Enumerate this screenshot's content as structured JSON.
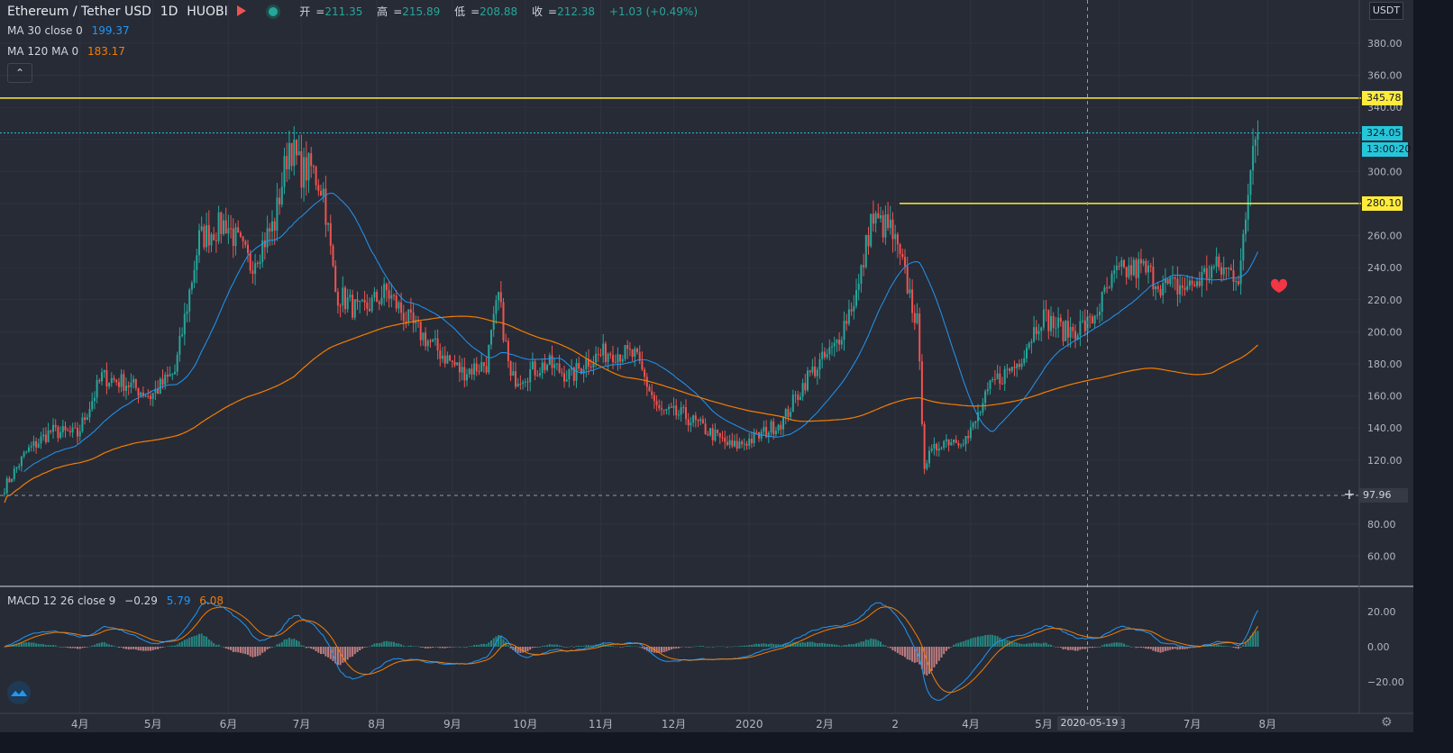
{
  "header": {
    "symbol": "Ethereum / Tether USD",
    "interval": "1D",
    "exchange": "HUOBI",
    "ohlc": [
      {
        "label": "开",
        "value": "211.35"
      },
      {
        "label": "高",
        "value": "215.89"
      },
      {
        "label": "低",
        "value": "208.88"
      },
      {
        "label": "收",
        "value": "212.38"
      }
    ],
    "change": "+1.03 (+0.49%)",
    "currency": "USDT"
  },
  "indicators": [
    {
      "name": "MA 30 close 0",
      "value": "199.37",
      "color": "#2196f3"
    },
    {
      "name": "MA 120 MA 0",
      "value": "183.17",
      "color": "#f57c00"
    }
  ],
  "macd": {
    "name": "MACD 12 26 close 9",
    "hist": "−0.29",
    "macd": "5.79",
    "signal": "6.08",
    "axis": [
      "20.00",
      "0.00",
      "−20.00"
    ]
  },
  "price_axis": [
    "380.00",
    "360.00",
    "340.00",
    "300.00",
    "260.00",
    "240.00",
    "220.00",
    "200.00",
    "180.00",
    "160.00",
    "140.00",
    "120.00",
    "80.00",
    "60.00"
  ],
  "tags": {
    "resistance_1": "345.78",
    "last_price": "324.05",
    "countdown": "13:00:20",
    "resistance_2": "280.10",
    "crosshair_price": "97.96"
  },
  "time_axis": [
    "4月",
    "5月",
    "6月",
    "7月",
    "8月",
    "9月",
    "10月",
    "11月",
    "12月",
    "2020",
    "2月",
    "2",
    "4月",
    "5月",
    "月",
    "7月",
    "8月"
  ],
  "crosshair_date": "2020-05-19",
  "colors": {
    "up": "#26a69a",
    "down": "#ef5350",
    "ma30": "#2196f3",
    "ma120": "#f57c00",
    "level": "#ffeb3b",
    "last": "#26c6da"
  },
  "chart_data": {
    "type": "candlestick",
    "interval": "1D",
    "ylim": [
      45,
      395
    ],
    "close_keypoints": [
      [
        "2019-03-01",
        103
      ],
      [
        "2019-03-10",
        125
      ],
      [
        "2019-03-20",
        138
      ],
      [
        "2019-03-31",
        136
      ],
      [
        "2019-04-10",
        172
      ],
      [
        "2019-04-20",
        168
      ],
      [
        "2019-04-30",
        160
      ],
      [
        "2019-05-10",
        175
      ],
      [
        "2019-05-20",
        258
      ],
      [
        "2019-05-31",
        268
      ],
      [
        "2019-06-10",
        242
      ],
      [
        "2019-06-20",
        268
      ],
      [
        "2019-06-26",
        318
      ],
      [
        "2019-07-01",
        300
      ],
      [
        "2019-07-05",
        302
      ],
      [
        "2019-07-10",
        288
      ],
      [
        "2019-07-15",
        225
      ],
      [
        "2019-07-25",
        212
      ],
      [
        "2019-08-05",
        225
      ],
      [
        "2019-08-15",
        205
      ],
      [
        "2019-08-25",
        190
      ],
      [
        "2019-09-05",
        175
      ],
      [
        "2019-09-15",
        180
      ],
      [
        "2019-09-20",
        222
      ],
      [
        "2019-09-25",
        170
      ],
      [
        "2019-10-10",
        180
      ],
      [
        "2019-10-20",
        172
      ],
      [
        "2019-10-26",
        182
      ],
      [
        "2019-11-05",
        188
      ],
      [
        "2019-11-15",
        185
      ],
      [
        "2019-11-25",
        150
      ],
      [
        "2019-12-05",
        148
      ],
      [
        "2019-12-15",
        138
      ],
      [
        "2019-12-25",
        128
      ],
      [
        "2020-01-05",
        135
      ],
      [
        "2020-01-15",
        145
      ],
      [
        "2020-01-25",
        172
      ],
      [
        "2020-02-05",
        190
      ],
      [
        "2020-02-15",
        228
      ],
      [
        "2020-02-20",
        270
      ],
      [
        "2020-02-28",
        264
      ],
      [
        "2020-03-05",
        235
      ],
      [
        "2020-03-10",
        205
      ],
      [
        "2020-03-13",
        118
      ],
      [
        "2020-03-20",
        132
      ],
      [
        "2020-03-31",
        134
      ],
      [
        "2020-04-10",
        168
      ],
      [
        "2020-04-20",
        180
      ],
      [
        "2020-04-30",
        210
      ],
      [
        "2020-05-10",
        200
      ],
      [
        "2020-05-20",
        205
      ],
      [
        "2020-05-31",
        236
      ],
      [
        "2020-06-10",
        240
      ],
      [
        "2020-06-20",
        228
      ],
      [
        "2020-06-30",
        228
      ],
      [
        "2020-07-10",
        240
      ],
      [
        "2020-07-20",
        236
      ],
      [
        "2020-07-23",
        270
      ],
      [
        "2020-07-26",
        316
      ],
      [
        "2020-07-28",
        324
      ]
    ],
    "ma30_name": "MA 30 close 0",
    "ma30_last": 199.37,
    "ma120_name": "MA 120 MA 0",
    "ma120_last": 183.17,
    "horizontal_levels": [
      345.78,
      280.1
    ],
    "last_price": 324.05,
    "crosshair": {
      "date": "2020-05-19",
      "price": 97.96
    },
    "macd": {
      "fast": 12,
      "slow": 26,
      "signal": 9,
      "hist": -0.29,
      "macd": 5.79,
      "signal_value": 6.08,
      "ylim": [
        -35,
        35
      ]
    }
  }
}
